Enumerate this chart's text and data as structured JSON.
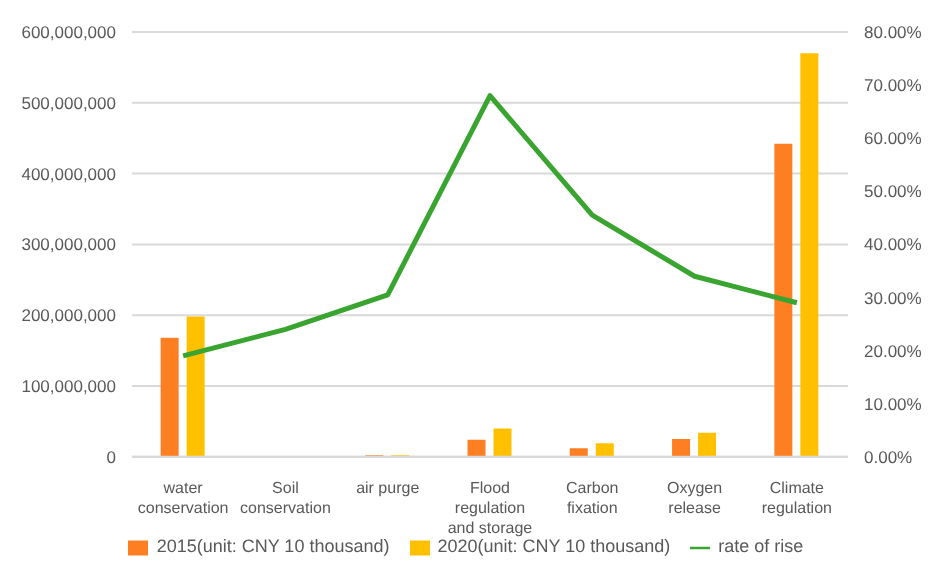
{
  "chart_data": {
    "type": "bar",
    "categories": [
      "water conservation",
      "Soil conservation",
      "air purge",
      "Flood regulation and storage",
      "Carbon fixation",
      "Oxygen release",
      "Climate regulation"
    ],
    "series": [
      {
        "name": "2015(unit: CNY 10 thousand)",
        "color": "#fe7f22",
        "values": [
          168000000,
          null,
          2000000,
          24000000,
          12000000,
          25000000,
          442000000
        ]
      },
      {
        "name": "2020(unit: CNY 10 thousand)",
        "color": "#ffc000",
        "values": [
          198000000,
          null,
          2000000,
          40000000,
          19000000,
          34000000,
          570000000
        ]
      },
      {
        "name": "rate of rise",
        "type": "line",
        "axis": "y2",
        "color": "#3aa431",
        "values": [
          19,
          24,
          30.5,
          68,
          45.5,
          34,
          29
        ]
      }
    ],
    "ylim": [
      0,
      600000000
    ],
    "yticks": [
      0,
      {
        "value": 100000000,
        "label": "100,000,000"
      },
      {
        "value": 200000000,
        "label": "200,000,000"
      },
      {
        "value": 300000000,
        "label": "300,000,000"
      },
      {
        "value": 400000000,
        "label": "400,000,000"
      },
      {
        "value": 500000000,
        "label": "500,000,000"
      },
      {
        "value": 600000000,
        "label": "600,000,000"
      }
    ],
    "y2lim": [
      0,
      80
    ],
    "y2ticks": [
      {
        "value": 0,
        "label": "0.00%"
      },
      {
        "value": 10,
        "label": "10.00%"
      },
      {
        "value": 20,
        "label": "20.00%"
      },
      {
        "value": 30,
        "label": "30.00%"
      },
      {
        "value": 40,
        "label": "40.00%"
      },
      {
        "value": 50,
        "label": "50.00%"
      },
      {
        "value": 60,
        "label": "60.00%"
      },
      {
        "value": 70,
        "label": "70.00%"
      },
      {
        "value": 80,
        "label": "80.00%"
      }
    ],
    "grid": "y",
    "legend": "bottom",
    "marker": "none"
  }
}
